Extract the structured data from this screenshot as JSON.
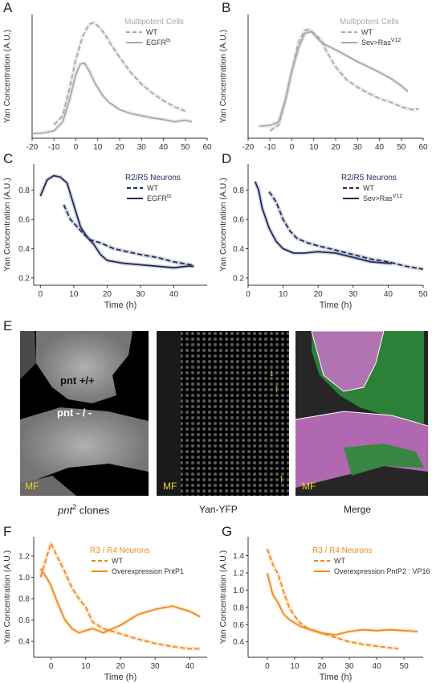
{
  "panels": {
    "A": {
      "letter": "A"
    },
    "B": {
      "letter": "B"
    },
    "C": {
      "letter": "C"
    },
    "D": {
      "letter": "D"
    },
    "E": {
      "letter": "E"
    },
    "F": {
      "letter": "F"
    },
    "G": {
      "letter": "G"
    }
  },
  "colors": {
    "grey": "#a8a8a8",
    "navy": "#1f2a5e",
    "orange": "#ee8a1c",
    "purple": "#c070c0",
    "green": "#2e8b3a",
    "yellow": "#f0d020"
  },
  "microscopy": {
    "images": [
      {
        "caption_main": "pnt",
        "caption_sup": "2",
        "caption_rest": " clones",
        "mf_label": "MF",
        "labels": [
          "pnt +/+",
          "pnt - / -"
        ]
      },
      {
        "caption": "Yan-YFP",
        "mf_label": "MF"
      },
      {
        "caption": "Merge",
        "mf_label": "MF"
      }
    ]
  },
  "chart_data": [
    {
      "panel": "A",
      "type": "line",
      "legend_title": "Multipotent Cells",
      "ylabel": "Yan Concentration (A.U.)",
      "xlabel": "",
      "xlim": [
        -20,
        60
      ],
      "ylim": [
        0.3,
        1.95
      ],
      "xticks": [
        -20,
        -10,
        0,
        10,
        20,
        30,
        40,
        50,
        60
      ],
      "yticks": [],
      "series": [
        {
          "name": "WT",
          "style": "dashed",
          "color": "#a8a8a8",
          "x": [
            -10,
            -6,
            -3,
            0,
            3,
            6,
            8,
            10,
            13,
            16,
            20,
            25,
            30,
            35,
            40,
            45,
            50
          ],
          "y": [
            0.48,
            0.6,
            0.95,
            1.35,
            1.65,
            1.82,
            1.84,
            1.8,
            1.7,
            1.55,
            1.38,
            1.18,
            1.02,
            0.9,
            0.8,
            0.72,
            0.66
          ]
        },
        {
          "name": "EGFR",
          "name_sup": "ts",
          "style": "solid",
          "color": "#a8a8a8",
          "x": [
            -20,
            -15,
            -10,
            -6,
            -3,
            0,
            2,
            4,
            6,
            9,
            12,
            15,
            20,
            25,
            30,
            35,
            40,
            45,
            50,
            53
          ],
          "y": [
            0.36,
            0.37,
            0.4,
            0.52,
            0.8,
            1.15,
            1.29,
            1.3,
            1.2,
            1.02,
            0.88,
            0.78,
            0.68,
            0.63,
            0.6,
            0.57,
            0.55,
            0.52,
            0.54,
            0.52
          ]
        }
      ]
    },
    {
      "panel": "B",
      "type": "line",
      "legend_title": "Multipotent Cells",
      "ylabel": "Yan Concentration (A.U.)",
      "xlabel": "",
      "xlim": [
        -20,
        60
      ],
      "ylim": [
        0.3,
        1.95
      ],
      "xticks": [
        -20,
        -10,
        0,
        10,
        20,
        30,
        40,
        50,
        60
      ],
      "yticks": [],
      "series": [
        {
          "name": "WT",
          "style": "dashed",
          "color": "#a8a8a8",
          "x": [
            -10,
            -6,
            -3,
            0,
            3,
            6,
            8,
            10,
            13,
            16,
            20,
            25,
            30,
            35,
            40,
            45,
            50,
            55,
            58
          ],
          "y": [
            0.4,
            0.48,
            0.8,
            1.2,
            1.58,
            1.74,
            1.75,
            1.7,
            1.62,
            1.45,
            1.25,
            1.08,
            0.98,
            0.9,
            0.83,
            0.78,
            0.72,
            0.68,
            0.69
          ]
        },
        {
          "name": "Sev>Ras",
          "name_sup": "V12",
          "style": "solid",
          "color": "#a8a8a8",
          "x": [
            -15,
            -10,
            -6,
            -3,
            0,
            3,
            6,
            9,
            12,
            15,
            20,
            25,
            30,
            35,
            40,
            45,
            50,
            53
          ],
          "y": [
            0.46,
            0.47,
            0.52,
            0.8,
            1.2,
            1.5,
            1.7,
            1.72,
            1.62,
            1.55,
            1.48,
            1.4,
            1.32,
            1.25,
            1.18,
            1.1,
            1.0,
            0.92
          ]
        }
      ]
    },
    {
      "panel": "C",
      "type": "line",
      "legend_title": "R2/R5 Neurons",
      "ylabel": "Yan Concentration (A.U.)",
      "xlabel": "Time (h)",
      "xlim": [
        -2,
        50
      ],
      "ylim": [
        0.15,
        0.98
      ],
      "xticks": [
        0,
        10,
        20,
        30,
        40
      ],
      "yticks": [
        0.2,
        0.4,
        0.6,
        0.8
      ],
      "series": [
        {
          "name": "WT",
          "style": "dashed",
          "color": "#1f2a5e",
          "x": [
            7,
            9,
            11,
            13,
            15,
            18,
            22,
            26,
            30,
            35,
            40,
            45,
            46
          ],
          "y": [
            0.7,
            0.6,
            0.55,
            0.5,
            0.46,
            0.44,
            0.4,
            0.38,
            0.36,
            0.34,
            0.31,
            0.29,
            0.28
          ]
        },
        {
          "name": "EGFR",
          "name_sup": "ts",
          "style": "solid",
          "color": "#1f2a5e",
          "x": [
            0,
            2,
            4,
            6,
            8,
            10,
            12,
            14,
            16,
            18,
            20,
            25,
            30,
            35,
            40,
            44,
            46
          ],
          "y": [
            0.76,
            0.87,
            0.9,
            0.89,
            0.85,
            0.7,
            0.55,
            0.48,
            0.43,
            0.36,
            0.32,
            0.3,
            0.29,
            0.28,
            0.27,
            0.28,
            0.28
          ]
        }
      ]
    },
    {
      "panel": "D",
      "type": "line",
      "legend_title": "R2/R5 Neurons",
      "ylabel": "Yan Concentration (A.U.)",
      "xlabel": "Time (h)",
      "xlim": [
        0,
        50
      ],
      "ylim": [
        0.15,
        0.98
      ],
      "xticks": [
        0,
        10,
        20,
        30,
        40,
        50
      ],
      "yticks": [
        0.2,
        0.4,
        0.6,
        0.8
      ],
      "series": [
        {
          "name": "WT",
          "style": "dashed",
          "color": "#1f2a5e",
          "x": [
            6,
            8,
            10,
            12,
            14,
            17,
            20,
            25,
            30,
            35,
            40,
            45,
            50
          ],
          "y": [
            0.79,
            0.72,
            0.6,
            0.52,
            0.47,
            0.44,
            0.42,
            0.39,
            0.36,
            0.33,
            0.31,
            0.28,
            0.26
          ]
        },
        {
          "name": "Sev>Ras",
          "name_sup": "V12",
          "style": "solid",
          "color": "#1f2a5e",
          "x": [
            2,
            3,
            4,
            6,
            8,
            10,
            13,
            16,
            20,
            25,
            30,
            35,
            40,
            41
          ],
          "y": [
            0.86,
            0.8,
            0.68,
            0.54,
            0.45,
            0.4,
            0.37,
            0.37,
            0.38,
            0.37,
            0.34,
            0.31,
            0.3,
            0.3
          ]
        }
      ]
    },
    {
      "panel": "F",
      "type": "line",
      "legend_title": "R3 / R4 Neurons",
      "ylabel": "Yan Concentration (A.U.)",
      "xlabel": "Time (h)",
      "xlim": [
        -5,
        45
      ],
      "ylim": [
        0.25,
        1.38
      ],
      "xticks": [
        0,
        10,
        20,
        30,
        40
      ],
      "yticks": [
        0.4,
        0.6,
        0.8,
        1.0,
        1.2
      ],
      "series": [
        {
          "name": "WT",
          "style": "dashed",
          "color": "#ee8a1c",
          "x": [
            -3,
            -1,
            0,
            2,
            4,
            6,
            8,
            10,
            12,
            15,
            20,
            25,
            30,
            35,
            40,
            43
          ],
          "y": [
            1.0,
            1.22,
            1.32,
            1.18,
            1.05,
            0.9,
            0.8,
            0.72,
            0.58,
            0.52,
            0.47,
            0.42,
            0.38,
            0.35,
            0.33,
            0.33
          ]
        },
        {
          "name": "Overexpression PntP1",
          "style": "solid",
          "color": "#ee8a1c",
          "x": [
            -3,
            -1,
            0,
            2,
            4,
            6,
            8,
            10,
            12,
            15,
            20,
            25,
            30,
            35,
            40,
            43
          ],
          "y": [
            1.08,
            0.98,
            0.92,
            0.75,
            0.6,
            0.52,
            0.48,
            0.5,
            0.52,
            0.48,
            0.55,
            0.65,
            0.7,
            0.73,
            0.68,
            0.63
          ]
        }
      ]
    },
    {
      "panel": "G",
      "type": "line",
      "legend_title": "R3 / R4 Neurons",
      "ylabel": "Yan Concentration (A.U.)",
      "xlabel": "Time (h)",
      "xlim": [
        -7,
        57
      ],
      "ylim": [
        0.22,
        1.62
      ],
      "xticks": [
        0,
        10,
        20,
        30,
        40,
        50
      ],
      "yticks": [
        0.4,
        0.6,
        0.8,
        1.0,
        1.2,
        1.4
      ],
      "series": [
        {
          "name": "WT",
          "style": "dashed",
          "color": "#ee8a1c",
          "x": [
            0,
            2,
            4,
            6,
            8,
            10,
            12,
            15,
            20,
            25,
            30,
            35,
            40,
            45,
            48
          ],
          "y": [
            1.48,
            1.3,
            1.18,
            0.98,
            0.8,
            0.7,
            0.62,
            0.55,
            0.5,
            0.45,
            0.4,
            0.37,
            0.35,
            0.33,
            0.32
          ]
        },
        {
          "name": "Overexpression PntP2 : VP16",
          "style": "solid",
          "color": "#ee8a1c",
          "x": [
            0,
            2,
            4,
            6,
            8,
            10,
            12,
            15,
            20,
            25,
            30,
            35,
            40,
            45,
            50,
            55
          ],
          "y": [
            1.2,
            0.95,
            0.85,
            0.72,
            0.66,
            0.62,
            0.58,
            0.55,
            0.5,
            0.48,
            0.52,
            0.54,
            0.53,
            0.54,
            0.53,
            0.52
          ]
        }
      ]
    }
  ]
}
